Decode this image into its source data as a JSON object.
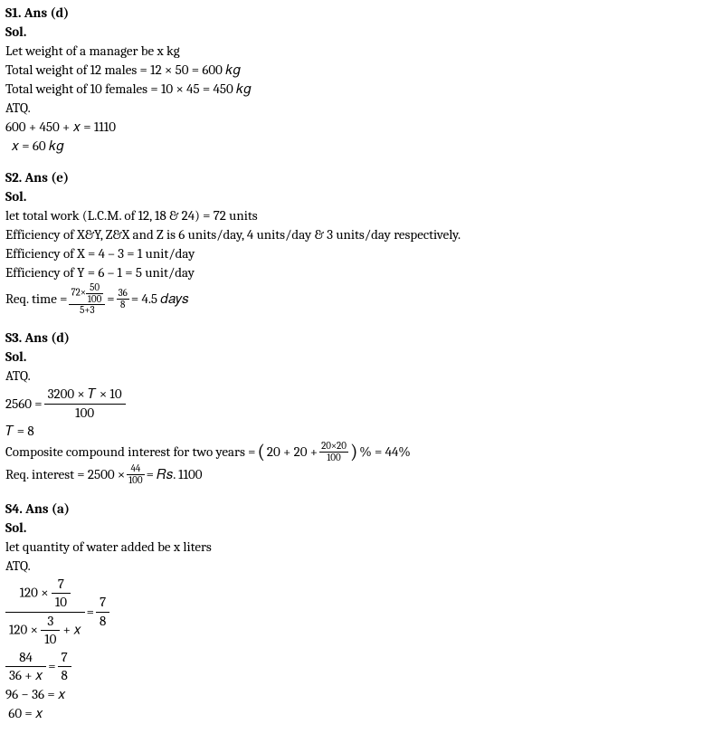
{
  "s1": {
    "heading": "S1. Ans (d)",
    "sol": "Sol.",
    "l1": "Let weight of a manager be x kg",
    "l2_a": "Total weight of 12 males = ",
    "l2_b": "12 × 50 = 600 𝑘𝑔",
    "l3_a": "Total weight of 10 females = ",
    "l3_b": "10 × 45 = 450 𝑘𝑔",
    "l4": "ATQ.",
    "l5": "600 + 450 + 𝑥 = 1110",
    "l6": "  𝑥 = 60 𝑘𝑔"
  },
  "s2": {
    "heading": "S2. Ans (e)",
    "sol": "Sol.",
    "l1": "let total work (L.C.M. of 12, 18 & 24) = 72 units",
    "l2": "Efficiency of X&Y, Z&X and Z is 6 units/day, 4 units/day & 3 units/day respectively.",
    "l3": "Efficiency of X = 4 – 3 = 1 unit/day",
    "l4": "Efficiency of Y = 6 – 1 = 5 unit/day",
    "req_label": "Req. time = ",
    "f1_num_a": "72×",
    "f1_num_b_num": "50",
    "f1_num_b_den": "100",
    "f1_den": "5+3",
    "eq1": " = ",
    "f2_num": "36",
    "f2_den": "8",
    "eq2": " = 4.5 𝑑𝑎𝑦𝑠"
  },
  "s3": {
    "heading": "S3. Ans (d)",
    "sol": "Sol.",
    "l1": "ATQ.",
    "eq_lhs": "2560 = ",
    "eq_num": "3200 × 𝑇 × 10",
    "eq_den": "100",
    "l3": " 𝑇 = 8",
    "comp_a": "Composite compound interest for two years = ",
    "comp_in": "20 + 20 + ",
    "comp_frac_num": "20×20",
    "comp_frac_den": "100",
    "comp_b": " % = 44%",
    "req_a": "Req. interest = 2500 × ",
    "req_frac_num": "44",
    "req_frac_den": "100",
    "req_b": " = 𝑅𝑠. 1100"
  },
  "s4": {
    "heading": "S4. Ans (a)",
    "sol": "Sol.",
    "l1": "let quantity of water added be x liters",
    "l2": "ATQ.",
    "big_num_a": "120 × ",
    "big_num_frac_num": "7",
    "big_num_frac_den": "10",
    "big_den_a": "120 × ",
    "big_den_frac_num": "3",
    "big_den_frac_den": "10",
    "big_den_b": " + 𝑥",
    "eq1": " = ",
    "rhs1_num": "7",
    "rhs1_den": "8",
    "mid_lhs_num": "84",
    "mid_lhs_den": "36 + 𝑥",
    "eq2": " = ",
    "rhs2_num": "7",
    "rhs2_den": "8",
    "l5": "96 − 36 = 𝑥",
    "l6": " 60 = 𝑥"
  }
}
